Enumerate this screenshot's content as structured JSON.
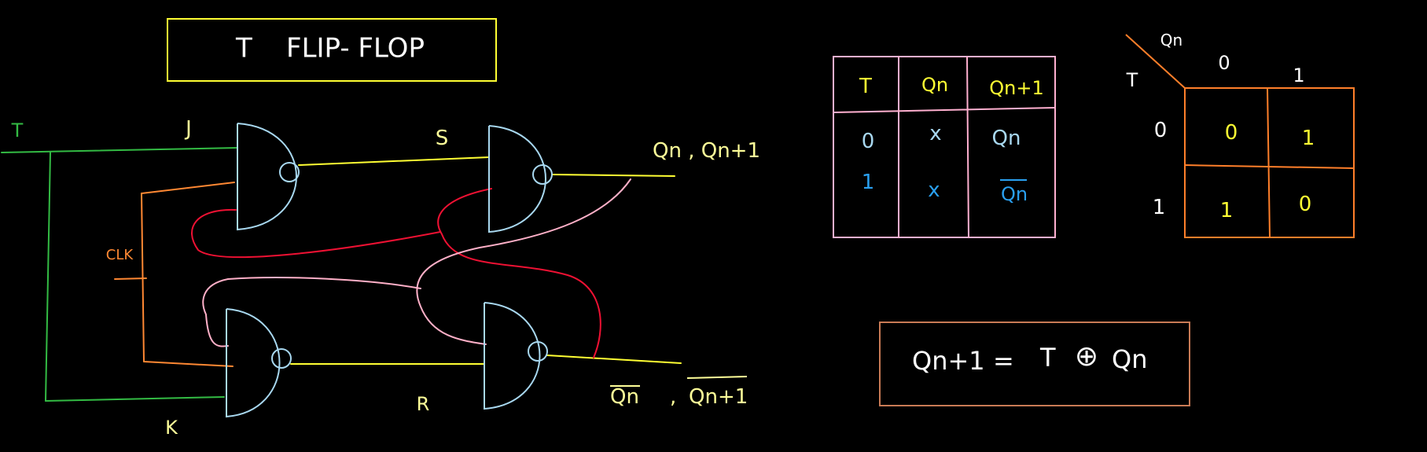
{
  "title": "T    FLIP- FLOP",
  "circuit": {
    "input_t": "T",
    "j_label": "J",
    "k_label": "K",
    "s_label": "S",
    "r_label": "R",
    "clk_label": "CLK",
    "q_output": "Qn , Qn+1",
    "qbar_output_1": "Qn",
    "qbar_output_sep": ",",
    "qbar_output_2": "Qn+1"
  },
  "truth_table": {
    "headers": [
      "T",
      "Qn",
      "Qn+1"
    ],
    "rows": [
      [
        "0",
        "x",
        "Qn"
      ],
      [
        "1",
        "x",
        "Qn"
      ]
    ]
  },
  "kmap": {
    "row_var": "T",
    "col_var": "Qn",
    "col_headers": [
      "0",
      "1"
    ],
    "row_headers": [
      "0",
      "1"
    ],
    "cells": [
      [
        "0",
        "1"
      ],
      [
        "1",
        "0"
      ]
    ]
  },
  "equation": {
    "lhs": "Qn+1",
    "equals": "=",
    "t": "T",
    "op": "⊕",
    "qn": "Qn"
  },
  "colors": {
    "yellow": "#ffff33",
    "green": "#33bb44",
    "orange": "#ff8833",
    "cyan": "#a8d8f0",
    "red": "#ee1133",
    "pink": "#ffb0c8",
    "table_border": "#ffb0d0",
    "kmap_border": "#ff7f2a",
    "eq_border": "#c87a55",
    "blue_text": "#2aa0f0"
  }
}
